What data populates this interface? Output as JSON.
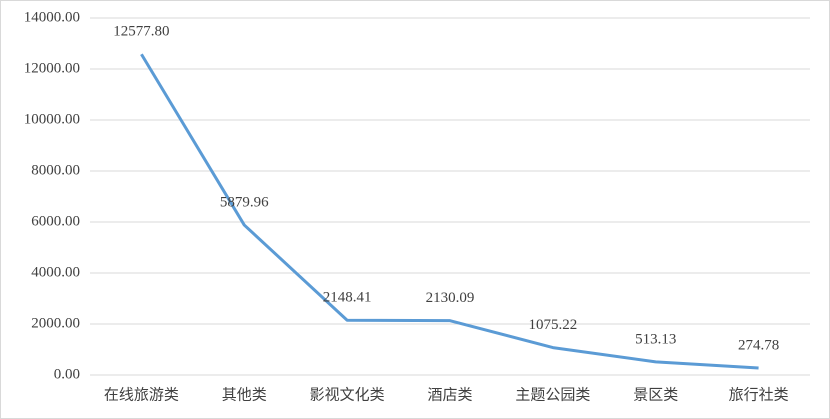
{
  "chart_data": {
    "type": "line",
    "categories": [
      "在线旅游类",
      "其他类",
      "影视文化类",
      "酒店类",
      "主题公园类",
      "景区类",
      "旅行社类"
    ],
    "values": [
      12577.8,
      5879.96,
      2148.41,
      2130.09,
      1075.22,
      513.13,
      274.78
    ],
    "value_labels": [
      "12577.80",
      "5879.96",
      "2148.41",
      "2130.09",
      "1075.22",
      "513.13",
      "274.78"
    ],
    "color": "#5b9bd5",
    "ylim": [
      0,
      14000
    ],
    "yticks": [
      {
        "value": 0,
        "label": "0.00"
      },
      {
        "value": 2000,
        "label": "2000.00"
      },
      {
        "value": 4000,
        "label": "4000.00"
      },
      {
        "value": 6000,
        "label": "6000.00"
      },
      {
        "value": 8000,
        "label": "8000.00"
      },
      {
        "value": 10000,
        "label": "10000.00"
      },
      {
        "value": 12000,
        "label": "12000.00"
      },
      {
        "value": 14000,
        "label": "14000.00"
      }
    ],
    "grid": true
  }
}
